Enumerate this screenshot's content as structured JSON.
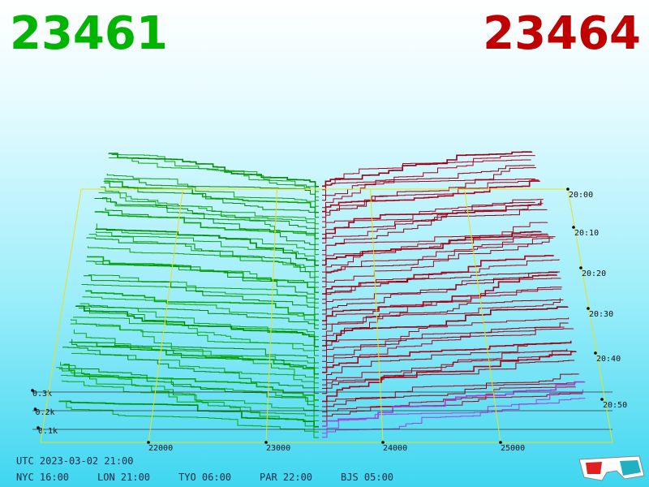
{
  "header": {
    "bid": "23461",
    "ask": "23464"
  },
  "depth_axis": {
    "labels": [
      "0.3k",
      "0.2k",
      "0.1k"
    ]
  },
  "price_axis": {
    "labels": [
      "22000",
      "23000",
      "24000",
      "25000"
    ]
  },
  "time_axis": {
    "labels": [
      "20:00",
      "20:10",
      "20:20",
      "20:30",
      "20:40",
      "20:50"
    ]
  },
  "footer": {
    "utc": "UTC 2023-03-02 21:00",
    "zones": [
      "NYC 16:00",
      "LON 21:00",
      "TYO 06:00",
      "PAR 22:00",
      "BJS 05:00"
    ]
  }
}
